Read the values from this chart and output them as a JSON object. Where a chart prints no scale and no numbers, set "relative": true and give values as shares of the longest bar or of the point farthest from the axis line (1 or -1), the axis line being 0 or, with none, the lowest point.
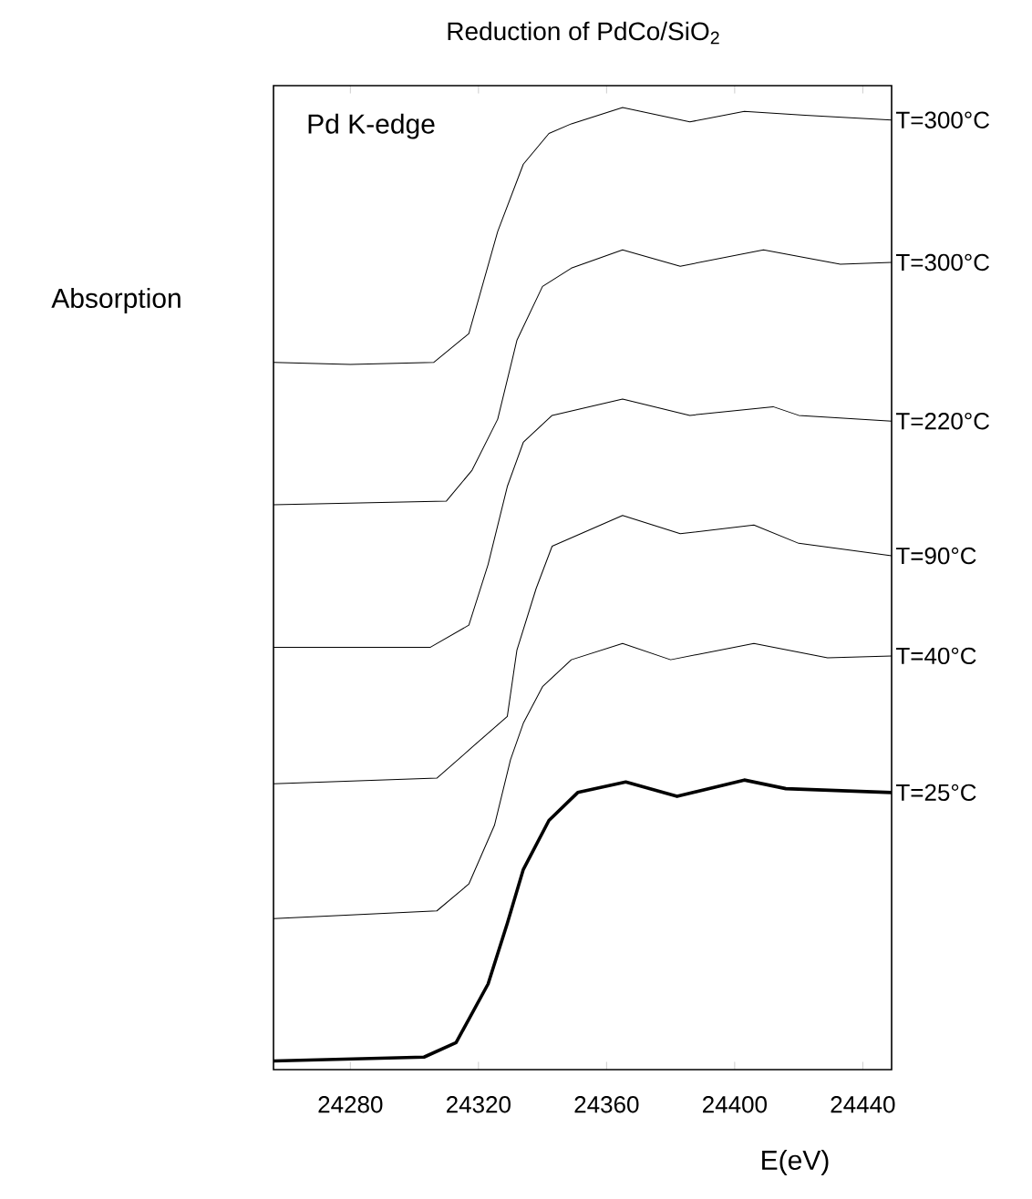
{
  "chart_data": {
    "type": "line",
    "title": "Reduction of PdCo/SiO$_{2}$",
    "xlabel": "E(eV)",
    "ylabel": "Absorption",
    "annotations": [
      "Pd K-edge"
    ],
    "relative": true,
    "xlim": [
      24256,
      24449
    ],
    "xticks": [
      24280,
      24320,
      24360,
      24400,
      24440
    ],
    "legend": false,
    "grid": false,
    "marker": "none",
    "line_style": "solid",
    "series": [
      {
        "name": "T=300°C",
        "color": "#000000",
        "x": [
          24256,
          24280,
          24306,
          24317,
          24326,
          24334,
          24342,
          24349,
          24365,
          24386,
          24403,
          24422,
          24449
        ],
        "values": [
          0.735,
          0.733,
          0.735,
          0.765,
          0.871,
          0.941,
          0.973,
          0.983,
          1.0,
          0.985,
          0.996,
          0.992,
          0.987
        ]
      },
      {
        "name": "T=300°C",
        "color": "#000000",
        "x": [
          24256,
          24310,
          24318,
          24326,
          24332,
          24340,
          24349,
          24365,
          24383,
          24409,
          24433,
          24449
        ],
        "values": [
          0.587,
          0.591,
          0.623,
          0.676,
          0.758,
          0.814,
          0.833,
          0.852,
          0.835,
          0.852,
          0.837,
          0.839
        ]
      },
      {
        "name": "T=220°C",
        "color": "#000000",
        "x": [
          24256,
          24305,
          24317,
          24323,
          24329,
          24334,
          24343,
          24365,
          24386,
          24412,
          24420,
          24449
        ],
        "values": [
          0.439,
          0.439,
          0.462,
          0.525,
          0.606,
          0.652,
          0.68,
          0.697,
          0.68,
          0.689,
          0.68,
          0.674
        ]
      },
      {
        "name": "T=90°C",
        "color": "#000000",
        "x": [
          24256,
          24307,
          24318,
          24329,
          24332,
          24338,
          24343,
          24365,
          24383,
          24406,
          24420,
          24449
        ],
        "values": [
          0.297,
          0.303,
          0.335,
          0.367,
          0.436,
          0.5,
          0.544,
          0.576,
          0.557,
          0.566,
          0.547,
          0.534
        ]
      },
      {
        "name": "T=40°C",
        "color": "#000000",
        "x": [
          24256,
          24307,
          24317,
          24325,
          24330,
          24334,
          24340,
          24349,
          24365,
          24380,
          24406,
          24429,
          24449
        ],
        "values": [
          0.157,
          0.165,
          0.193,
          0.254,
          0.322,
          0.36,
          0.398,
          0.426,
          0.443,
          0.426,
          0.443,
          0.428,
          0.43
        ]
      },
      {
        "name": "T=25°C",
        "color": "#000000",
        "x": [
          24256,
          24303,
          24313,
          24323,
          24329,
          24334,
          24342,
          24351,
          24366,
          24382,
          24403,
          24416,
          24449
        ],
        "values": [
          0.009,
          0.013,
          0.028,
          0.089,
          0.152,
          0.208,
          0.259,
          0.288,
          0.299,
          0.284,
          0.301,
          0.292,
          0.288
        ]
      }
    ]
  }
}
